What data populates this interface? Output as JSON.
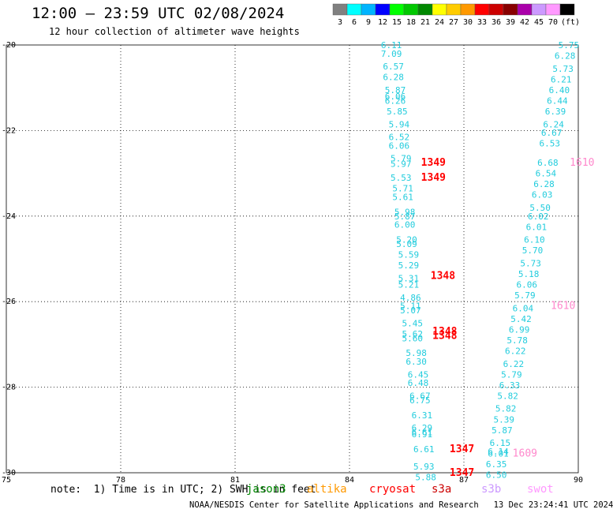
{
  "title": "12:00 – 23:59 UTC 02/08/2024",
  "subtitle": "12 hour collection of altimeter wave heights",
  "legend": {
    "colors": [
      "#808080",
      "#00ffff",
      "#00b4ff",
      "#0000ff",
      "#00ff00",
      "#00c800",
      "#008800",
      "#ffff00",
      "#ffcc00",
      "#ff9900",
      "#ff0000",
      "#cc0000",
      "#880000",
      "#aa00aa",
      "#cc99ff",
      "#ff99ff",
      "#000000"
    ],
    "labels": [
      "3",
      "6",
      "9",
      "12",
      "15",
      "18",
      "21",
      "24",
      "27",
      "30",
      "33",
      "36",
      "39",
      "42",
      "45",
      "70",
      "(ft)"
    ]
  },
  "note": "note:  1) Time is in UTC; 2) SWH is in feet",
  "satellites": [
    {
      "name": "jason3",
      "color": "#008800"
    },
    {
      "name": "altika",
      "color": "#ff9900"
    },
    {
      "name": "cryosat",
      "color": "#ff0000"
    },
    {
      "name": "s3a",
      "color": "#cc0000"
    },
    {
      "name": "s3b",
      "color": "#cc99ff"
    },
    {
      "name": "swot",
      "color": "#ff99ff"
    }
  ],
  "credit": "NOAA/NESDIS Center for Satellite Applications and Research   13 Dec 23:24:41 UTC 2024",
  "chart_data": {
    "type": "scatter",
    "xlim": [
      75,
      90
    ],
    "ylim": [
      -30,
      -20
    ],
    "x_ticks": [
      75,
      78,
      81,
      84,
      87,
      90
    ],
    "y_ticks": [
      -20,
      -22,
      -24,
      -26,
      -28,
      -30
    ],
    "grid": true,
    "series": [
      {
        "color": "#22ccdd",
        "points": [
          {
            "x": 85.1,
            "y": -20.0,
            "label": "6.11"
          },
          {
            "x": 85.1,
            "y": -20.2,
            "label": "7.09"
          },
          {
            "x": 85.15,
            "y": -20.5,
            "label": "6.57"
          },
          {
            "x": 85.15,
            "y": -20.75,
            "label": "6.28"
          },
          {
            "x": 85.2,
            "y": -21.05,
            "label": "5.87"
          },
          {
            "x": 85.2,
            "y": -21.2,
            "label": "6.06"
          },
          {
            "x": 85.2,
            "y": -21.3,
            "label": "6.26"
          },
          {
            "x": 85.25,
            "y": -21.55,
            "label": "5.85"
          },
          {
            "x": 85.3,
            "y": -21.85,
            "label": "5.94"
          },
          {
            "x": 85.3,
            "y": -22.15,
            "label": "6.52"
          },
          {
            "x": 85.3,
            "y": -22.35,
            "label": "6.06"
          },
          {
            "x": 85.35,
            "y": -22.65,
            "label": "5.79"
          },
          {
            "x": 85.35,
            "y": -22.78,
            "label": "5.97"
          },
          {
            "x": 85.35,
            "y": -23.1,
            "label": "5.53"
          },
          {
            "x": 85.4,
            "y": -23.35,
            "label": "5.71"
          },
          {
            "x": 85.4,
            "y": -23.55,
            "label": "5.61"
          },
          {
            "x": 85.45,
            "y": -23.9,
            "label": "5.98"
          },
          {
            "x": 85.45,
            "y": -24.0,
            "label": "5.87"
          },
          {
            "x": 85.45,
            "y": -24.2,
            "label": "6.00"
          },
          {
            "x": 85.5,
            "y": -24.55,
            "label": "5.20"
          },
          {
            "x": 85.5,
            "y": -24.65,
            "label": "5.09"
          },
          {
            "x": 85.55,
            "y": -24.9,
            "label": "5.59"
          },
          {
            "x": 85.55,
            "y": -25.15,
            "label": "5.29"
          },
          {
            "x": 85.55,
            "y": -25.45,
            "label": "5.31"
          },
          {
            "x": 85.55,
            "y": -25.6,
            "label": "5.21"
          },
          {
            "x": 85.6,
            "y": -25.9,
            "label": "4.86"
          },
          {
            "x": 85.6,
            "y": -26.1,
            "label": "5.11"
          },
          {
            "x": 85.6,
            "y": -26.2,
            "label": "5.07"
          },
          {
            "x": 85.65,
            "y": -26.5,
            "label": "5.45"
          },
          {
            "x": 85.65,
            "y": -26.75,
            "label": "5.62"
          },
          {
            "x": 85.65,
            "y": -26.85,
            "label": "5.60"
          },
          {
            "x": 85.75,
            "y": -27.2,
            "label": "5.98"
          },
          {
            "x": 85.75,
            "y": -27.4,
            "label": "6.30"
          },
          {
            "x": 85.8,
            "y": -27.7,
            "label": "6.45"
          },
          {
            "x": 85.8,
            "y": -27.9,
            "label": "6.48"
          },
          {
            "x": 85.85,
            "y": -28.2,
            "label": "6.67"
          },
          {
            "x": 85.85,
            "y": -28.3,
            "label": "6.75"
          },
          {
            "x": 85.9,
            "y": -28.65,
            "label": "6.31"
          },
          {
            "x": 85.9,
            "y": -28.95,
            "label": "6.29"
          },
          {
            "x": 85.9,
            "y": -29.05,
            "label": "6.61"
          },
          {
            "x": 85.9,
            "y": -29.1,
            "label": "6.91"
          },
          {
            "x": 85.95,
            "y": -29.45,
            "label": "6.61"
          },
          {
            "x": 85.95,
            "y": -29.85,
            "label": "5.93"
          },
          {
            "x": 86.0,
            "y": -30.1,
            "label": "5.88"
          },
          {
            "x": 89.75,
            "y": -20.0,
            "label": "5.75"
          },
          {
            "x": 89.65,
            "y": -20.25,
            "label": "6.28"
          },
          {
            "x": 89.6,
            "y": -20.55,
            "label": "5.73"
          },
          {
            "x": 89.55,
            "y": -20.8,
            "label": "6.21"
          },
          {
            "x": 89.5,
            "y": -21.05,
            "label": "6.40"
          },
          {
            "x": 89.45,
            "y": -21.3,
            "label": "6.44"
          },
          {
            "x": 89.4,
            "y": -21.55,
            "label": "6.39"
          },
          {
            "x": 89.35,
            "y": -21.85,
            "label": "6.24"
          },
          {
            "x": 89.3,
            "y": -22.05,
            "label": "6.67"
          },
          {
            "x": 89.25,
            "y": -22.3,
            "label": "6.53"
          },
          {
            "x": 89.2,
            "y": -22.75,
            "label": "6.68"
          },
          {
            "x": 89.15,
            "y": -23.0,
            "label": "6.54"
          },
          {
            "x": 89.1,
            "y": -23.25,
            "label": "6.28"
          },
          {
            "x": 89.05,
            "y": -23.5,
            "label": "6.03"
          },
          {
            "x": 89.0,
            "y": -23.8,
            "label": "5.50"
          },
          {
            "x": 88.95,
            "y": -24.0,
            "label": "6.02"
          },
          {
            "x": 88.9,
            "y": -24.25,
            "label": "6.01"
          },
          {
            "x": 88.85,
            "y": -24.55,
            "label": "6.10"
          },
          {
            "x": 88.8,
            "y": -24.8,
            "label": "5.70"
          },
          {
            "x": 88.75,
            "y": -25.1,
            "label": "5.73"
          },
          {
            "x": 88.7,
            "y": -25.35,
            "label": "5.18"
          },
          {
            "x": 88.65,
            "y": -25.6,
            "label": "6.06"
          },
          {
            "x": 88.6,
            "y": -25.85,
            "label": "5.79"
          },
          {
            "x": 88.55,
            "y": -26.15,
            "label": "6.04"
          },
          {
            "x": 88.5,
            "y": -26.4,
            "label": "5.42"
          },
          {
            "x": 88.45,
            "y": -26.65,
            "label": "6.99"
          },
          {
            "x": 88.4,
            "y": -26.9,
            "label": "5.78"
          },
          {
            "x": 88.35,
            "y": -27.15,
            "label": "6.22"
          },
          {
            "x": 88.3,
            "y": -27.45,
            "label": "6.22"
          },
          {
            "x": 88.25,
            "y": -27.7,
            "label": "5.79"
          },
          {
            "x": 88.2,
            "y": -27.95,
            "label": "6.33"
          },
          {
            "x": 88.15,
            "y": -28.2,
            "label": "5.82"
          },
          {
            "x": 88.1,
            "y": -28.5,
            "label": "5.82"
          },
          {
            "x": 88.05,
            "y": -28.75,
            "label": "5.39"
          },
          {
            "x": 88.0,
            "y": -29.0,
            "label": "5.87"
          },
          {
            "x": 87.95,
            "y": -29.3,
            "label": "6.15"
          },
          {
            "x": 87.9,
            "y": -29.5,
            "label": "6.14"
          },
          {
            "x": 87.9,
            "y": -29.55,
            "label": "6.01"
          },
          {
            "x": 87.85,
            "y": -29.8,
            "label": "6.35"
          },
          {
            "x": 87.85,
            "y": -30.05,
            "label": "6.50"
          }
        ]
      },
      {
        "color": "#ff0000",
        "points": [
          {
            "x": 86.2,
            "y": -22.75,
            "label": "1349"
          },
          {
            "x": 86.2,
            "y": -23.1,
            "label": "1349"
          },
          {
            "x": 86.45,
            "y": -25.4,
            "label": "1348"
          },
          {
            "x": 86.5,
            "y": -26.7,
            "label": "1348"
          },
          {
            "x": 86.5,
            "y": -26.8,
            "label": "1348"
          },
          {
            "x": 86.95,
            "y": -29.45,
            "label": "1347"
          },
          {
            "x": 86.95,
            "y": -30.0,
            "label": "1347"
          }
        ]
      },
      {
        "color": "#ff88cc",
        "points": [
          {
            "x": 90.1,
            "y": -22.75,
            "label": "1610"
          },
          {
            "x": 89.6,
            "y": -26.1,
            "label": "1610"
          },
          {
            "x": 88.6,
            "y": -29.55,
            "label": "1609"
          }
        ]
      }
    ]
  }
}
